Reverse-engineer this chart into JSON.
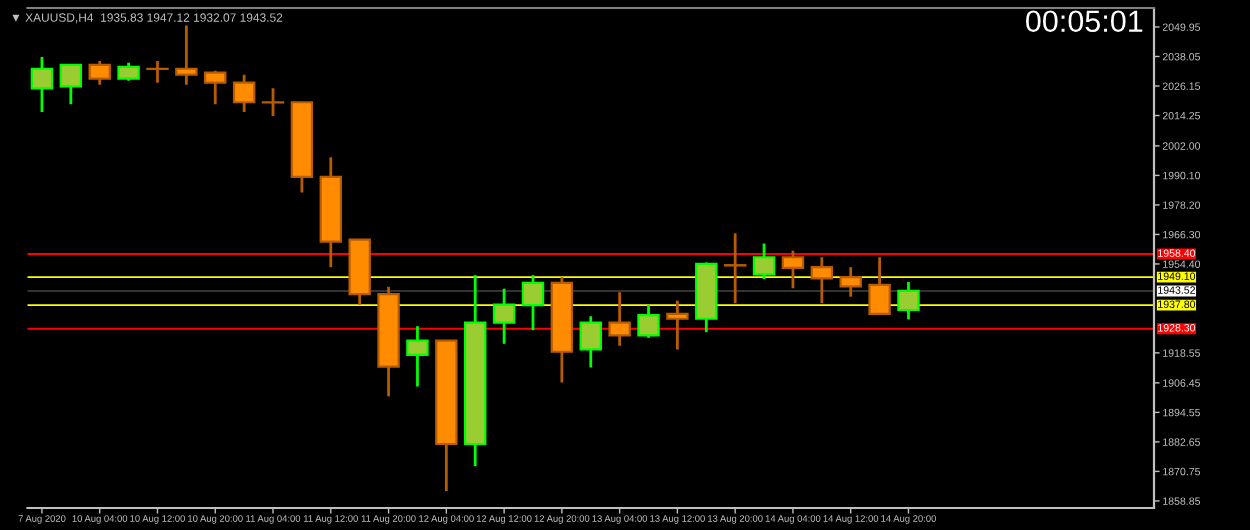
{
  "chart_data": {
    "type": "candlestick",
    "title": "▼ XAUUSD,H4  1935.83 1947.12 1932.07 1943.52",
    "annotations": [
      "00:05:01"
    ],
    "categories": [
      "7 Aug 2020",
      null,
      "10 Aug 04:00",
      null,
      "10 Aug 12:00",
      null,
      "10 Aug 20:00",
      null,
      "11 Aug 04:00",
      null,
      "11 Aug 12:00",
      null,
      "11 Aug 20:00",
      null,
      "12 Aug 04:00",
      null,
      "12 Aug 12:00",
      null,
      "12 Aug 20:00",
      null,
      "13 Aug 04:00",
      null,
      "13 Aug 12:00",
      null,
      "13 Aug 20:00",
      null,
      "14 Aug 04:00",
      null,
      "14 Aug 12:00",
      null,
      "14 Aug 20:00",
      null,
      null,
      null,
      null,
      null,
      null,
      null,
      null
    ],
    "ohlc": [
      [
        2025.2,
        2037.8,
        2015.7,
        2033.1
      ],
      [
        2026.0,
        2034.7,
        2018.8,
        2034.7
      ],
      [
        2034.7,
        2036.2,
        2026.7,
        2029.1
      ],
      [
        2029.1,
        2035.5,
        2028.3,
        2033.9
      ],
      [
        2033.1,
        2036.2,
        2027.5,
        2033.0
      ],
      [
        2033.1,
        2050.5,
        2026.7,
        2030.7
      ],
      [
        2031.5,
        2032.3,
        2018.8,
        2027.5
      ],
      [
        2027.5,
        2030.7,
        2015.7,
        2019.6
      ],
      [
        2019.6,
        2025.2,
        2014.1,
        2019.5
      ],
      [
        2019.6,
        2019.6,
        1983.2,
        1989.5
      ],
      [
        1989.5,
        1997.4,
        1953.1,
        1963.4
      ],
      [
        1964.2,
        1964.2,
        1938.0,
        1942.2
      ],
      [
        1942.2,
        1945.2,
        1901.0,
        1913.0
      ],
      [
        1917.7,
        1929.3,
        1905.0,
        1923.5
      ],
      [
        1923.5,
        1923.5,
        1862.8,
        1881.8
      ],
      [
        1881.8,
        1949.9,
        1872.9,
        1930.7
      ],
      [
        1930.7,
        1944.4,
        1922.2,
        1938.0
      ],
      [
        1937.8,
        1949.9,
        1927.7,
        1946.8
      ],
      [
        1946.8,
        1949.1,
        1906.6,
        1919.0
      ],
      [
        1920.0,
        1933.3,
        1912.7,
        1930.7
      ],
      [
        1930.7,
        1943.0,
        1921.4,
        1925.6
      ],
      [
        1925.6,
        1938.0,
        1924.6,
        1933.8
      ],
      [
        1934.3,
        1939.6,
        1919.9,
        1932.3
      ],
      [
        1932.3,
        1955.0,
        1926.9,
        1954.4
      ],
      [
        1953.9,
        1966.8,
        1938.6,
        1953.8
      ],
      [
        1950.2,
        1962.6,
        1948.3,
        1957.1
      ],
      [
        1957.1,
        1959.7,
        1944.6,
        1952.8
      ],
      [
        1953.1,
        1957.1,
        1938.6,
        1948.6
      ],
      [
        1949.1,
        1953.1,
        1941.2,
        1945.4
      ],
      [
        1946.0,
        1957.1,
        1934.1,
        1934.3
      ],
      [
        1935.83,
        1947.12,
        1932.07,
        1943.52
      ],
      null,
      null,
      null,
      null,
      null,
      null,
      null,
      null
    ],
    "ylim": [
      1856.0,
      2057.6
    ],
    "yticks": [
      2049.95,
      2038.05,
      2026.15,
      2014.25,
      {
        "value": 2002.0,
        "label": "2002.00"
      },
      {
        "value": 1990.1,
        "label": "1990.10"
      },
      {
        "value": 1978.2,
        "label": "1978.20"
      },
      {
        "value": 1966.3,
        "label": "1966.30"
      },
      {
        "value": 1954.4,
        "label": "1954.40"
      },
      1918.55,
      1906.45,
      1894.55,
      1882.65,
      1870.75,
      1858.85
    ],
    "ref_lines": [
      {
        "axis": "y",
        "value": 1958.4,
        "label": "1958.40",
        "color": "#ff0000"
      },
      {
        "axis": "y",
        "value": 1949.1,
        "label": "1949.10",
        "color": "#ffff00"
      },
      {
        "axis": "y",
        "value": 1943.52,
        "label": "1943.52",
        "color": "#333333"
      },
      {
        "axis": "y",
        "value": 1937.8,
        "label": "1937.80",
        "color": "#ffff00"
      },
      {
        "axis": "y",
        "value": 1928.3,
        "label": "1928.30",
        "color": "#ff0000"
      }
    ],
    "grid": false
  }
}
